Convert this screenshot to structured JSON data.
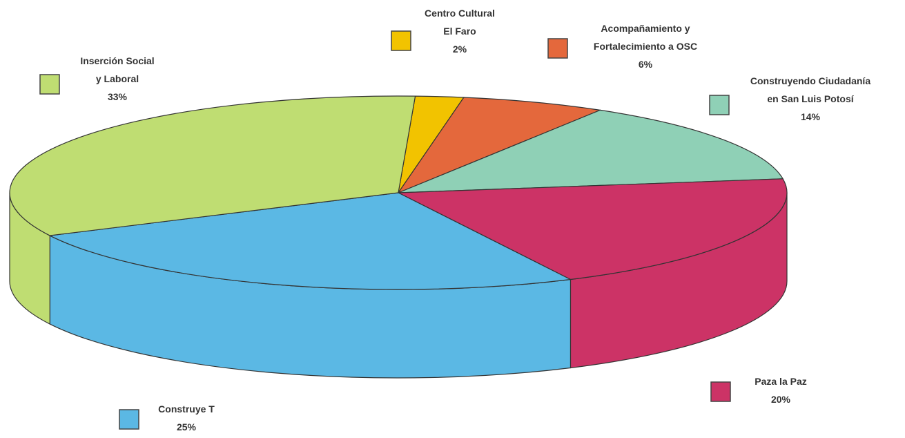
{
  "chart_data": {
    "type": "pie",
    "title": "",
    "series": [
      {
        "name": "",
        "values": [
          2,
          6,
          14,
          20,
          25,
          33
        ]
      }
    ],
    "slices": [
      {
        "label_lines": [
          "Centro Cultural",
          "El Faro"
        ],
        "value": 2,
        "value_label": "2%",
        "color": "#f2c300"
      },
      {
        "label_lines": [
          "Acompañamiento y",
          "Fortalecimiento a OSC"
        ],
        "value": 6,
        "value_label": "6%",
        "color": "#e4683c"
      },
      {
        "label_lines": [
          "Construyendo Ciudadanía",
          "en San Luis Potosí"
        ],
        "value": 14,
        "value_label": "14%",
        "color": "#8fd0b6"
      },
      {
        "label_lines": [
          "Paza la Paz"
        ],
        "value": 20,
        "value_label": "20%",
        "color": "#cc3366"
      },
      {
        "label_lines": [
          "Construye T"
        ],
        "value": 25,
        "value_label": "25%",
        "color": "#5bb8e4"
      },
      {
        "label_lines": [
          "Inserción Social",
          "y Laboral"
        ],
        "value": 33,
        "value_label": "33%",
        "color": "#bfdd72"
      }
    ],
    "style": "3d-pie",
    "legend": "labels-around-chart"
  }
}
